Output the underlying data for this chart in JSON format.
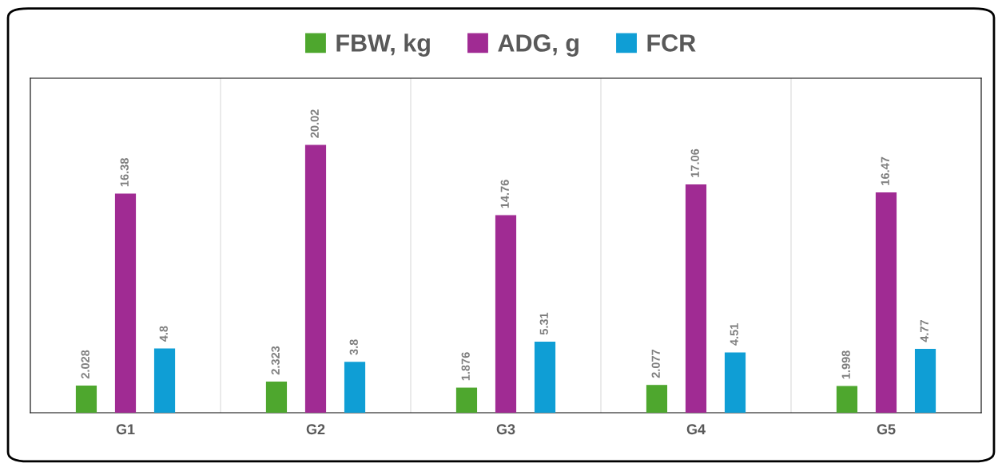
{
  "chart_data": {
    "type": "bar",
    "categories": [
      "G1",
      "G2",
      "G3",
      "G4",
      "G5"
    ],
    "series": [
      {
        "name": "FBW, kg",
        "color": "#4ea72e",
        "values": [
          2.028,
          2.323,
          1.876,
          2.077,
          1.998
        ]
      },
      {
        "name": "ADG, g",
        "color": "#a02b93",
        "values": [
          16.38,
          20.02,
          14.76,
          17.06,
          16.47
        ]
      },
      {
        "name": "FCR",
        "color": "#0f9ed5",
        "values": [
          4.8,
          3.8,
          5.31,
          4.51,
          4.77
        ]
      }
    ],
    "ylim": [
      0,
      25
    ],
    "data_labels": true,
    "grid": "x",
    "legend": "top",
    "tick_labels": "x"
  }
}
